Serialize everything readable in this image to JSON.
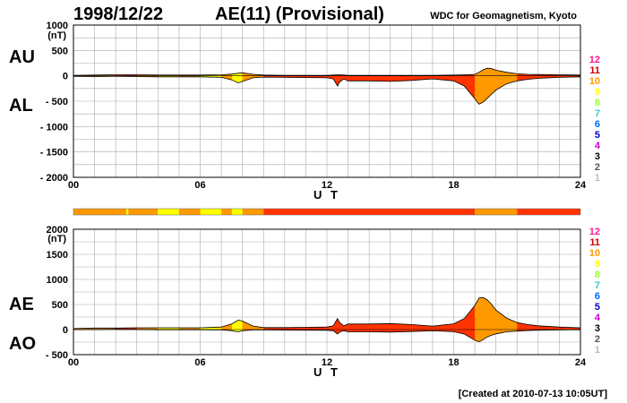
{
  "header": {
    "date": "1998/12/22",
    "index_title": "AE(11) (Provisional)",
    "source": "WDC for Geomagnetism, Kyoto"
  },
  "footer": {
    "created": "[Created at 2010-07-13 10:05UT]"
  },
  "station_legend": {
    "labels": [
      "12",
      "11",
      "10",
      "9",
      "8",
      "7",
      "6",
      "5",
      "4",
      "3",
      "2",
      "1"
    ],
    "colors": [
      "#ff1493",
      "#cc0000",
      "#ff9900",
      "#ffff00",
      "#99ff33",
      "#33cccc",
      "#0066ff",
      "#0000cc",
      "#cc00cc",
      "#000000",
      "#555555",
      "#bbbbbb"
    ]
  },
  "chart_data": [
    {
      "type": "area",
      "series_labels": [
        "AU",
        "AL"
      ],
      "unit_label": "(nT)",
      "xlabel": "U T",
      "xlim": [
        0,
        24
      ],
      "x_ticks": [
        "00",
        "06",
        "12",
        "18",
        "24"
      ],
      "ylim": [
        -2000,
        1000
      ],
      "y_ticks": [
        "1000",
        "500",
        "0",
        "- 500",
        "- 1000",
        "- 1500",
        "- 2000"
      ],
      "grid": true,
      "x": [
        0,
        1,
        2,
        3,
        4,
        5,
        6,
        7,
        7.5,
        7.8,
        8,
        8.5,
        9,
        10,
        11,
        12,
        12.3,
        12.5,
        12.6,
        12.8,
        13,
        14,
        15,
        16,
        17,
        18,
        18.5,
        19,
        19.2,
        19.4,
        19.6,
        19.8,
        20,
        20.5,
        21,
        21.5,
        22,
        23,
        24
      ],
      "au": [
        10,
        15,
        20,
        20,
        15,
        15,
        15,
        20,
        35,
        50,
        60,
        30,
        15,
        10,
        10,
        10,
        15,
        20,
        20,
        15,
        10,
        10,
        10,
        10,
        10,
        15,
        20,
        30,
        70,
        120,
        150,
        140,
        110,
        70,
        40,
        30,
        25,
        20,
        15
      ],
      "al": [
        -10,
        -15,
        -10,
        -15,
        -20,
        -20,
        -20,
        -30,
        -80,
        -140,
        -110,
        -40,
        -25,
        -30,
        -35,
        -40,
        -60,
        -200,
        -120,
        -60,
        -100,
        -100,
        -110,
        -90,
        -60,
        -100,
        -200,
        -450,
        -560,
        -520,
        -440,
        -360,
        -280,
        -160,
        -100,
        -70,
        -50,
        -30,
        -20
      ]
    },
    {
      "type": "area",
      "series_labels": [
        "AE",
        "AO"
      ],
      "unit_label": "(nT)",
      "xlabel": "U T",
      "xlim": [
        0,
        24
      ],
      "x_ticks": [
        "00",
        "06",
        "12",
        "18",
        "24"
      ],
      "ylim": [
        -500,
        2000
      ],
      "y_ticks": [
        "2000",
        "1500",
        "1000",
        "500",
        "0",
        "- 500"
      ],
      "grid": true,
      "x": [
        0,
        1,
        2,
        3,
        4,
        5,
        6,
        7,
        7.5,
        7.8,
        8,
        8.5,
        9,
        10,
        11,
        12,
        12.3,
        12.5,
        12.6,
        12.8,
        13,
        14,
        15,
        16,
        17,
        18,
        18.5,
        19,
        19.2,
        19.4,
        19.6,
        19.8,
        20,
        20.5,
        21,
        21.5,
        22,
        23,
        24
      ],
      "ae": [
        20,
        30,
        30,
        35,
        35,
        35,
        35,
        50,
        115,
        190,
        170,
        70,
        40,
        40,
        45,
        50,
        75,
        220,
        140,
        75,
        110,
        110,
        120,
        100,
        70,
        115,
        220,
        480,
        630,
        640,
        590,
        500,
        390,
        230,
        140,
        100,
        75,
        50,
        35
      ],
      "ao": [
        0,
        0,
        5,
        3,
        -3,
        -3,
        -3,
        -5,
        -23,
        -45,
        -25,
        -5,
        -5,
        -10,
        -13,
        -15,
        -23,
        -90,
        -50,
        -23,
        -45,
        -45,
        -50,
        -40,
        -25,
        -43,
        -90,
        -210,
        -245,
        -200,
        -145,
        -110,
        -85,
        -45,
        -30,
        -20,
        -13,
        -5,
        -3
      ]
    }
  ],
  "station_bar": {
    "segments": [
      {
        "from": 0,
        "to": 2.5,
        "color": "#ff9900"
      },
      {
        "from": 2.5,
        "to": 2.6,
        "color": "#ffff00"
      },
      {
        "from": 2.6,
        "to": 4,
        "color": "#ff9900"
      },
      {
        "from": 4,
        "to": 5,
        "color": "#ffff00"
      },
      {
        "from": 5,
        "to": 6,
        "color": "#ff9900"
      },
      {
        "from": 6,
        "to": 7,
        "color": "#ffff00"
      },
      {
        "from": 7,
        "to": 7.5,
        "color": "#ff9900"
      },
      {
        "from": 7.5,
        "to": 8,
        "color": "#ffff00"
      },
      {
        "from": 8,
        "to": 9,
        "color": "#ff9900"
      },
      {
        "from": 9,
        "to": 19,
        "color": "#ff3300"
      },
      {
        "from": 19,
        "to": 21,
        "color": "#ff9900"
      },
      {
        "from": 21,
        "to": 24,
        "color": "#ff3300"
      }
    ]
  }
}
